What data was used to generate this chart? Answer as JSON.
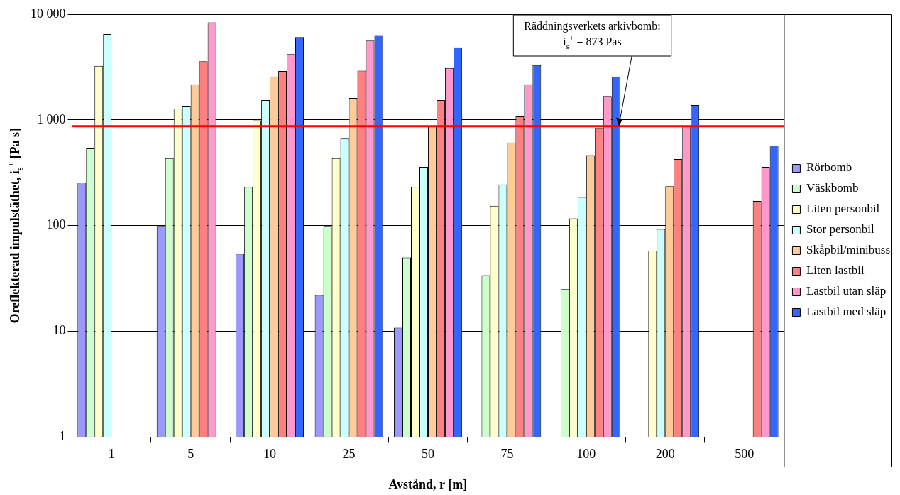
{
  "chart_data": {
    "type": "bar",
    "xlabel": "Avstånd, r [m]",
    "ylabel": "Oreflekterad impulstäthet, i$_{s}$$^{+}$ [Pa s]",
    "categories": [
      "1",
      "5",
      "10",
      "25",
      "50",
      "75",
      "100",
      "200",
      "500"
    ],
    "series": [
      {
        "name": "Rörbomb",
        "color": "#9999ff",
        "values": [
          255,
          99,
          54,
          22,
          10.8,
          null,
          null,
          null,
          null
        ]
      },
      {
        "name": "Väskbomb",
        "color": "#ccffcc",
        "values": [
          537,
          434,
          232,
          99,
          50,
          34,
          25,
          null,
          null
        ]
      },
      {
        "name": "Liten personbil",
        "color": "#ffffcc",
        "values": [
          3240,
          1280,
          990,
          434,
          232,
          154,
          117,
          58,
          null
        ]
      },
      {
        "name": "Stor personbil",
        "color": "#ccffff",
        "values": [
          6490,
          1360,
          1540,
          665,
          359,
          245,
          186,
          93,
          null
        ]
      },
      {
        "name": "Skåpbil/minibuss",
        "color": "#ffcc99",
        "values": [
          null,
          2170,
          2570,
          1610,
          870,
          611,
          464,
          236,
          null
        ]
      },
      {
        "name": "Liten lastbil",
        "color": "#ff8080",
        "values": [
          null,
          3590,
          2900,
          2920,
          1540,
          1080,
          838,
          426,
          171
        ]
      },
      {
        "name": "Lastbil utan släp",
        "color": "#ff99cc",
        "values": [
          null,
          8380,
          4190,
          5610,
          3100,
          2170,
          1680,
          870,
          359
        ]
      },
      {
        "name": "Lastbil med släp",
        "color": "#3366ff",
        "values": [
          null,
          null,
          6070,
          6340,
          4850,
          3300,
          2570,
          1380,
          571
        ]
      }
    ],
    "log": "y",
    "ylim": [
      1,
      10000
    ],
    "yticks": [
      {
        "value": 1,
        "label": "1"
      },
      {
        "value": 10,
        "label": "10"
      },
      {
        "value": 100,
        "label": "100"
      },
      {
        "value": 1000,
        "label": "1 000"
      },
      {
        "value": 10000,
        "label": "10 000"
      }
    ],
    "grid": "y",
    "legend": "right",
    "ref_lines": [
      {
        "axis": "y",
        "value": 873,
        "color": "#ff0000",
        "label": "Räddningsverkets arkivbomb:\ni$_{s}$$^{+}$ = 873 Pas"
      }
    ]
  }
}
